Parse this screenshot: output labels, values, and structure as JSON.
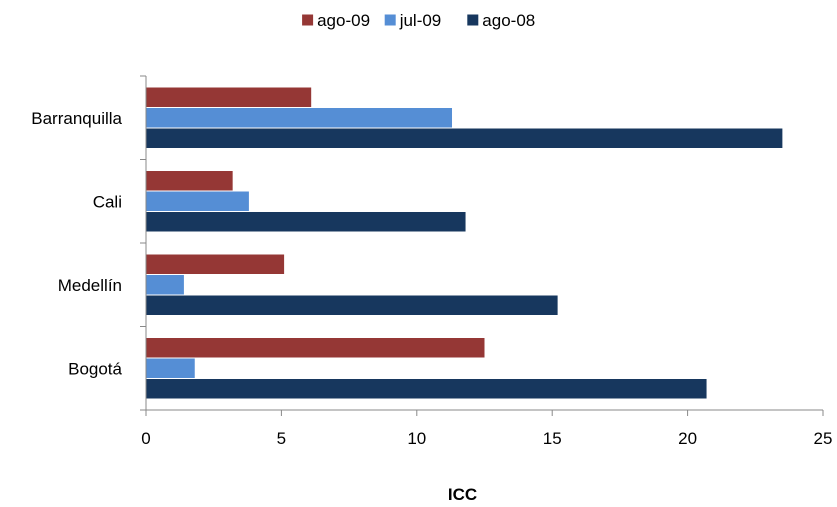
{
  "chart_data": {
    "type": "bar",
    "orientation": "horizontal",
    "categories": [
      "Barranquilla",
      "Cali",
      "Medellín",
      "Bogotá"
    ],
    "series": [
      {
        "name": "ago-09",
        "color": "#953735",
        "values": [
          6.1,
          3.2,
          5.1,
          12.5
        ]
      },
      {
        "name": "jul-09",
        "color": "#558ED5",
        "values": [
          11.3,
          3.8,
          1.4,
          1.8
        ]
      },
      {
        "name": "ago-08",
        "color": "#17375E",
        "values": [
          23.5,
          11.8,
          15.2,
          20.7
        ]
      }
    ],
    "xlabel": "ICC",
    "xlim": [
      0,
      25
    ],
    "xticks": [
      "0",
      "5",
      "10",
      "15",
      "20",
      "25"
    ],
    "grid": false,
    "legend_position": "top"
  }
}
